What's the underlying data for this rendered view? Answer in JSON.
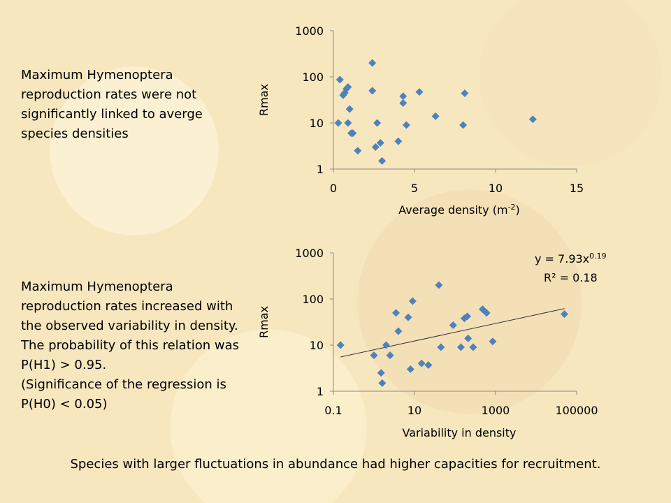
{
  "text": {
    "top_description": "Maximum Hymenoptera reproduction rates were not significantly linked to averge species densities",
    "bottom_description": [
      "Maximum Hymenoptera reproduction rates increased with the observed variability in density.",
      "The probability of this relation was P(H1) > 0.95.",
      "(Significance of the regression is P(H0) < 0.05)"
    ],
    "footer": "Species with larger fluctuations in abundance had higher capacities for recruitment."
  },
  "colors": {
    "marker": "#4f81bd",
    "trendline": "#333333",
    "axis": "#888888"
  },
  "chart_data": [
    {
      "type": "scatter",
      "xlabel": "Average density (m",
      "xlabel_sup": "-2",
      "xlabel_end": ")",
      "ylabel": "Rmax",
      "x_scale": "linear",
      "y_scale": "log",
      "xlim": [
        0,
        15
      ],
      "ylim": [
        1,
        1000
      ],
      "x_ticks": [
        "0",
        "5",
        "10",
        "15"
      ],
      "y_ticks": [
        "1",
        "10",
        "100",
        "1000"
      ],
      "grid": false,
      "points": [
        [
          0.3,
          10
        ],
        [
          0.4,
          87
        ],
        [
          0.6,
          40
        ],
        [
          0.7,
          45
        ],
        [
          0.9,
          60
        ],
        [
          0.8,
          55
        ],
        [
          0.9,
          10
        ],
        [
          1.0,
          20
        ],
        [
          1.1,
          6
        ],
        [
          1.2,
          6
        ],
        [
          1.5,
          2.5
        ],
        [
          2.4,
          50
        ],
        [
          2.4,
          200
        ],
        [
          2.6,
          3
        ],
        [
          2.7,
          10
        ],
        [
          2.9,
          3.7
        ],
        [
          3.0,
          1.5
        ],
        [
          4.0,
          4
        ],
        [
          4.3,
          38
        ],
        [
          4.3,
          27
        ],
        [
          4.5,
          9
        ],
        [
          5.3,
          47
        ],
        [
          6.3,
          14
        ],
        [
          8.0,
          9
        ],
        [
          8.1,
          44
        ],
        [
          12.3,
          12
        ]
      ]
    },
    {
      "type": "scatter",
      "xlabel": "Variability in density",
      "ylabel": "Rmax",
      "x_scale": "log",
      "y_scale": "log",
      "xlim": [
        0.1,
        100000
      ],
      "ylim": [
        1,
        1000
      ],
      "x_ticks": [
        "0.1",
        "10",
        "1000",
        "100000"
      ],
      "y_ticks": [
        "1",
        "10",
        "100",
        "1000"
      ],
      "grid": false,
      "annotation": {
        "line1_prefix": "y = 7.93x",
        "line1_sup": "0.19",
        "line2": "R² = 0.18"
      },
      "trendline": {
        "a": 7.93,
        "b": 0.19,
        "x_from": 0.15,
        "x_to": 50000
      },
      "points": [
        [
          0.15,
          10
        ],
        [
          1.0,
          6
        ],
        [
          1.5,
          2.5
        ],
        [
          1.6,
          1.5
        ],
        [
          2.0,
          10
        ],
        [
          2.5,
          6
        ],
        [
          3.5,
          50
        ],
        [
          4.0,
          20
        ],
        [
          7.0,
          40
        ],
        [
          8.0,
          3
        ],
        [
          9.0,
          90
        ],
        [
          15,
          4
        ],
        [
          22,
          3.7
        ],
        [
          40,
          200
        ],
        [
          45,
          9
        ],
        [
          90,
          27
        ],
        [
          140,
          9
        ],
        [
          170,
          38
        ],
        [
          200,
          42
        ],
        [
          210,
          14
        ],
        [
          280,
          9
        ],
        [
          480,
          60
        ],
        [
          600,
          50
        ],
        [
          850,
          12
        ],
        [
          50000,
          47
        ]
      ]
    }
  ]
}
